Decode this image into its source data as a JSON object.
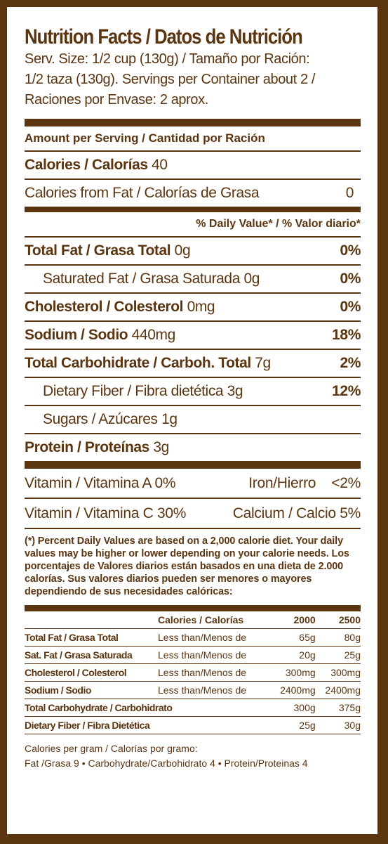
{
  "title": "Nutrition Facts / Datos de Nutrición",
  "serving_lines": [
    "Serv. Size: 1/2 cup (130g) / Tamaño por Ración:",
    "1/2 taza (130g). Servings per Container about 2 /",
    "Raciones por Envase: 2 aprox."
  ],
  "amount_per_serving": "Amount per Serving / Cantidad por Ración",
  "calories": {
    "label": "Calories / Calorías",
    "value": "40"
  },
  "calories_from_fat": {
    "label": "Calories from Fat / Calorías de Grasa",
    "value": "0"
  },
  "daily_value_header": "% Daily Value* / % Valor diario*",
  "nutrients": [
    {
      "label": "Total Fat / Grasa Total",
      "amount": "0g",
      "dv": "0%"
    },
    {
      "label": "Saturated Fat / Grasa Saturada",
      "amount": "0g",
      "dv": "0%"
    },
    {
      "label": "Cholesterol / Colesterol",
      "amount": "0mg",
      "dv": "0%"
    },
    {
      "label": "Sodium / Sodio",
      "amount": "440mg",
      "dv": "18%"
    },
    {
      "label": "Total Carbohidrate / Carboh. Total",
      "amount": "7g",
      "dv": "2%"
    },
    {
      "label": "Dietary Fiber / Fibra dietética",
      "amount": "3g",
      "dv": "12%"
    },
    {
      "label": "Sugars / Azúcares",
      "amount": "1g",
      "dv": ""
    },
    {
      "label": "Protein / Proteínas",
      "amount": "3g",
      "dv": ""
    }
  ],
  "vitamins": [
    {
      "left": "Vitamin / Vitamina A 0%",
      "right": "Iron/Hierro    <2%"
    },
    {
      "left": "Vitamin / Vitamina C 30%",
      "right": "Calcium / Calcio 5%"
    }
  ],
  "footnote": "(*) Percent Daily Values are based on a 2,000 calorie diet. Your daily values may be higher or lower depending on your calorie needs. Los porcentajes de Valores diarios están basados en una dieta de 2.000 calorías. Sus valores diarios pueden ser menores o mayores dependiendo de sus necesidades calóricas:",
  "ref_table": {
    "headers": [
      "",
      "Calories / Calorías",
      "2000",
      "2500"
    ],
    "rows": [
      [
        "Total Fat / Grasa Total",
        "Less than/Menos de",
        "65g",
        "80g"
      ],
      [
        "Sat. Fat / Grasa Saturada",
        "Less than/Menos de",
        "20g",
        "25g"
      ],
      [
        "Cholesterol / Colesterol",
        "Less than/Menos de",
        "300mg",
        "300mg"
      ],
      [
        "Sodium / Sodio",
        "Less than/Menos de",
        "2400mg",
        "2400mg"
      ],
      [
        "Total Carbohydrate / Carbohidrato",
        "",
        "300g",
        "375g"
      ],
      [
        "Dietary Fiber / Fibra Dietética",
        "",
        "25g",
        "30g"
      ]
    ]
  },
  "calories_per_gram": [
    "Calories per gram / Calorías por gramo:",
    "Fat /Grasa 9 • Carbohydrate/Carbohidrato 4 • Protein/Proteinas 4"
  ],
  "colors": {
    "brown": "#5b3510",
    "background": "#ffffff"
  }
}
